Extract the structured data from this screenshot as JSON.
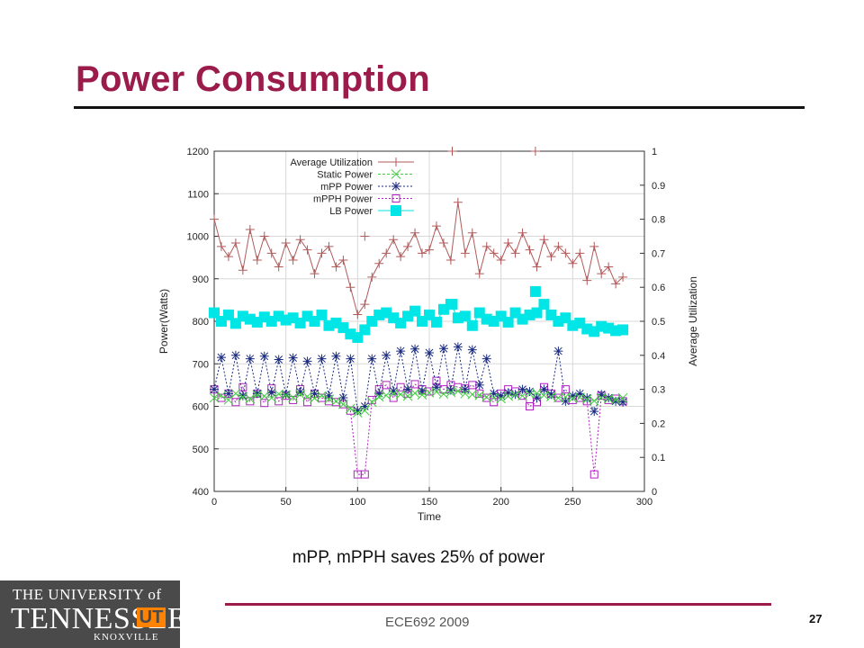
{
  "slide": {
    "title": "Power Consumption",
    "caption": "mPP, mPPH saves 25% of power",
    "footer": "ECE692  2009",
    "page_number": "27"
  },
  "logo": {
    "line1": "THE UNIVERSITY of",
    "line2": "TENNESSEE",
    "badge": "UT",
    "line3": "KNOXVILLE"
  },
  "colors": {
    "title": "#9b1b4a",
    "utilization": "#b05a5a",
    "static": "#44cc44",
    "mpp": "#1a2b80",
    "mpph": "#b020c0",
    "lb": "#00e5e5"
  },
  "chart_data": {
    "type": "line",
    "xlabel": "Time",
    "ylabel": "Power(Watts)",
    "y2label": "Average Utilization",
    "xlim": [
      0,
      300
    ],
    "ylim": [
      400,
      1200
    ],
    "y2lim": [
      0,
      1
    ],
    "xticks": [
      0,
      50,
      100,
      150,
      200,
      250,
      300
    ],
    "yticks": [
      400,
      500,
      600,
      700,
      800,
      900,
      1000,
      1100,
      1200
    ],
    "y2ticks": [
      0,
      0.1,
      0.2,
      0.3,
      0.4,
      0.5,
      0.6,
      0.7,
      0.8,
      0.9,
      1
    ],
    "legend_position": "top-left",
    "grid": true,
    "x": [
      0,
      5,
      10,
      15,
      20,
      25,
      30,
      35,
      40,
      45,
      50,
      55,
      60,
      65,
      70,
      75,
      80,
      85,
      90,
      95,
      100,
      105,
      110,
      115,
      120,
      125,
      130,
      135,
      140,
      145,
      150,
      155,
      160,
      165,
      170,
      175,
      180,
      185,
      190,
      195,
      200,
      205,
      210,
      215,
      220,
      225,
      230,
      235,
      240,
      245,
      250,
      255,
      260,
      265,
      270,
      275,
      280,
      285
    ],
    "series": [
      {
        "name": "Average Utilization",
        "axis": "right",
        "marker": "+",
        "values": [
          0.8,
          0.72,
          0.69,
          0.73,
          0.65,
          0.77,
          0.68,
          0.75,
          0.7,
          0.66,
          0.73,
          0.68,
          0.74,
          0.71,
          0.64,
          0.7,
          0.72,
          0.66,
          0.68,
          0.6,
          0.52,
          0.55,
          0.63,
          0.67,
          0.7,
          0.74,
          0.69,
          0.72,
          0.76,
          0.7,
          0.71,
          0.78,
          0.73,
          0.68,
          0.85,
          0.7,
          0.76,
          0.64,
          0.72,
          0.7,
          0.68,
          0.73,
          0.7,
          0.76,
          0.71,
          0.66,
          0.74,
          0.69,
          0.72,
          0.7,
          0.67,
          0.7,
          0.62,
          0.72,
          0.64,
          0.66,
          0.61,
          0.63
        ]
      },
      {
        "name": "Static Power",
        "axis": "left",
        "marker": "x",
        "values": [
          620,
          625,
          615,
          630,
          622,
          618,
          627,
          624,
          620,
          629,
          626,
          621,
          628,
          623,
          619,
          625,
          617,
          612,
          605,
          595,
          585,
          590,
          610,
          622,
          626,
          630,
          628,
          624,
          631,
          627,
          632,
          634,
          629,
          633,
          636,
          630,
          628,
          626,
          622,
          620,
          618,
          624,
          627,
          625,
          629,
          631,
          626,
          623,
          620,
          622,
          619,
          621,
          617,
          613,
          620,
          618,
          615,
          620
        ]
      },
      {
        "name": "mPP Power",
        "axis": "left",
        "marker": "star",
        "values": [
          640,
          715,
          630,
          720,
          625,
          712,
          630,
          718,
          632,
          710,
          628,
          714,
          634,
          706,
          630,
          712,
          625,
          718,
          620,
          712,
          590,
          600,
          712,
          630,
          720,
          636,
          730,
          640,
          735,
          636,
          726,
          645,
          736,
          638,
          740,
          640,
          733,
          650,
          712,
          630,
          625,
          632,
          628,
          640,
          635,
          620,
          640,
          628,
          730,
          612,
          625,
          630,
          620,
          588,
          628,
          620,
          612,
          610
        ]
      },
      {
        "name": "mPPH Power",
        "axis": "left",
        "marker": "square",
        "values": [
          640,
          620,
          630,
          610,
          645,
          612,
          630,
          608,
          642,
          612,
          625,
          615,
          640,
          610,
          630,
          620,
          612,
          610,
          605,
          590,
          440,
          440,
          615,
          640,
          650,
          620,
          645,
          630,
          652,
          640,
          635,
          660,
          640,
          650,
          645,
          642,
          650,
          630,
          620,
          610,
          630,
          640,
          635,
          625,
          600,
          610,
          645,
          630,
          620,
          640,
          615,
          620,
          612,
          440,
          625,
          615,
          618,
          612
        ]
      },
      {
        "name": "LB Power",
        "axis": "left",
        "marker": "filled-square",
        "values": [
          820,
          800,
          815,
          795,
          812,
          805,
          798,
          810,
          800,
          812,
          803,
          808,
          796,
          812,
          800,
          815,
          790,
          796,
          785,
          770,
          762,
          780,
          800,
          815,
          820,
          808,
          796,
          812,
          824,
          800,
          815,
          798,
          828,
          840,
          808,
          812,
          790,
          820,
          805,
          800,
          812,
          798,
          820,
          805,
          815,
          820,
          840,
          815,
          800,
          808,
          790,
          796,
          782,
          776,
          788,
          784,
          778,
          780
        ]
      }
    ],
    "outliers": {
      "utilization_spikes": [
        [
          105,
          0.75
        ],
        [
          166,
          1.0
        ],
        [
          224,
          1.0
        ]
      ],
      "lb_spikes": [
        [
          166,
          840
        ],
        [
          224,
          870
        ]
      ]
    }
  }
}
